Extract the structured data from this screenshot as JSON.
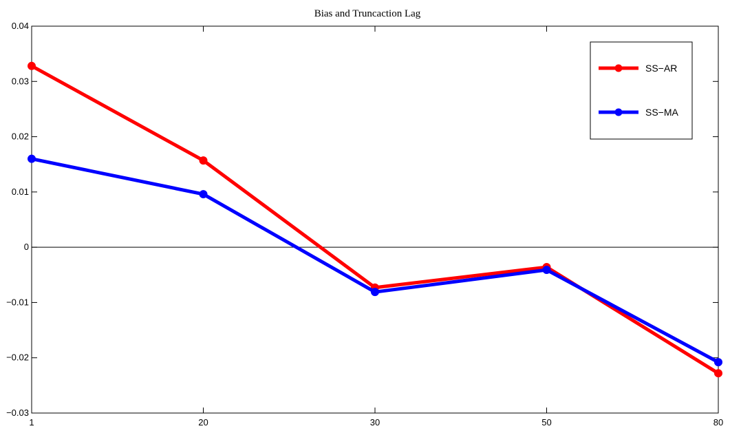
{
  "chart_data": {
    "type": "line",
    "title": "Bias and Truncaction Lag",
    "xlabel": "",
    "ylabel": "",
    "categories": [
      "1",
      "20",
      "30",
      "50",
      "80"
    ],
    "ylim": [
      -0.03,
      0.04
    ],
    "yticks": [
      -0.03,
      -0.02,
      -0.01,
      0,
      0.01,
      0.02,
      0.03,
      0.04
    ],
    "ytick_labels": [
      "−0.03",
      "−0.02",
      "−0.01",
      "0",
      "0.01",
      "0.02",
      "0.03",
      "0.04"
    ],
    "zero_line": true,
    "grid": false,
    "legend_position": "top-right",
    "series": [
      {
        "name": "SS−AR",
        "color": "#ff0000",
        "values": [
          0.0328,
          0.0157,
          -0.0073,
          -0.0036,
          -0.0228
        ]
      },
      {
        "name": "SS−MA",
        "color": "#0000ff",
        "values": [
          0.016,
          0.0096,
          -0.0081,
          -0.0041,
          -0.0208
        ]
      }
    ]
  }
}
